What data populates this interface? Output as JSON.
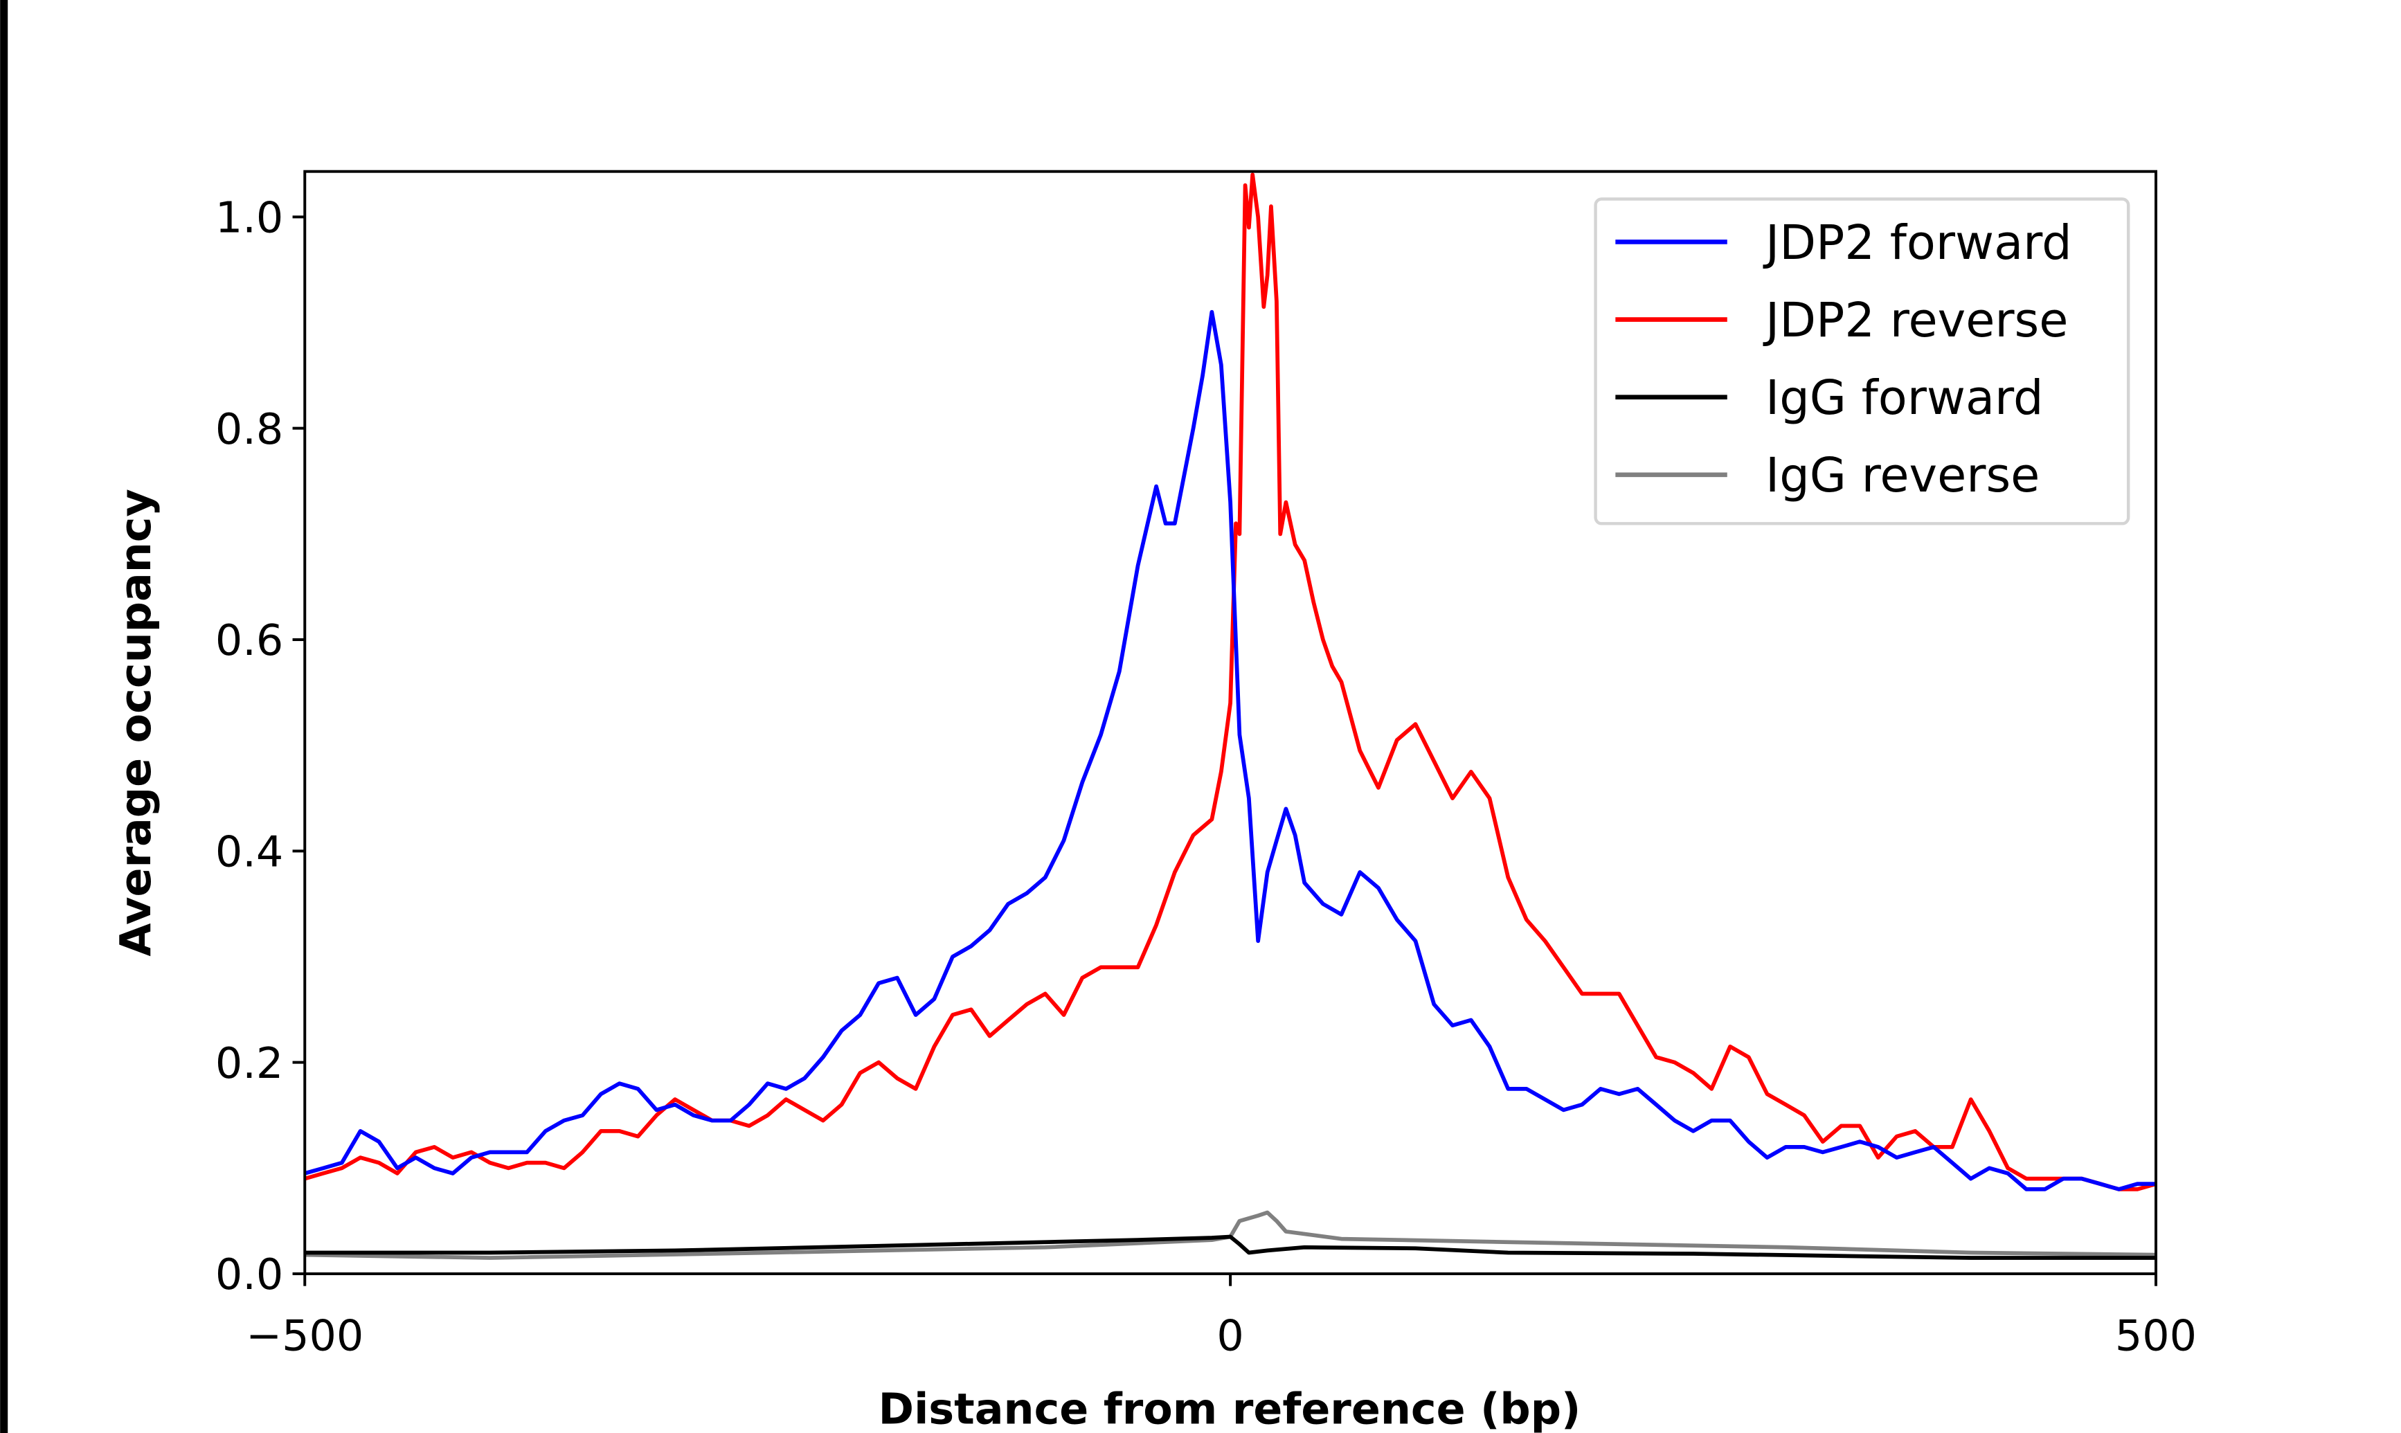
{
  "chart_data": {
    "type": "line",
    "title": "",
    "xlabel": "Distance from reference (bp)",
    "ylabel": "Average occupancy",
    "xlim": [
      -500,
      500
    ],
    "ylim": [
      0,
      1.043
    ],
    "xticks": [
      -500,
      0,
      500
    ],
    "xtick_labels": [
      "−500",
      "0",
      "500"
    ],
    "yticks": [
      0,
      0.2,
      0.4,
      0.6,
      0.8,
      1.0
    ],
    "ytick_labels": [
      "0.0",
      "0.2",
      "0.4",
      "0.6",
      "0.8",
      "1.0"
    ],
    "grid": false,
    "legend_position": "top-right",
    "series": [
      {
        "name": "JDP2 forward",
        "color": "#0000ff",
        "x": [
          -500,
          -490,
          -480,
          -470,
          -460,
          -450,
          -440,
          -430,
          -420,
          -410,
          -400,
          -390,
          -380,
          -370,
          -360,
          -350,
          -340,
          -330,
          -320,
          -310,
          -300,
          -290,
          -280,
          -270,
          -260,
          -250,
          -240,
          -230,
          -220,
          -210,
          -200,
          -190,
          -180,
          -170,
          -160,
          -150,
          -140,
          -130,
          -120,
          -110,
          -100,
          -90,
          -80,
          -70,
          -60,
          -50,
          -40,
          -35,
          -30,
          -20,
          -15,
          -10,
          -5,
          0,
          5,
          10,
          15,
          20,
          25,
          30,
          35,
          40,
          50,
          60,
          70,
          80,
          90,
          100,
          110,
          120,
          130,
          140,
          150,
          160,
          170,
          180,
          190,
          200,
          210,
          220,
          230,
          240,
          250,
          260,
          270,
          280,
          290,
          300,
          310,
          320,
          330,
          340,
          350,
          360,
          370,
          380,
          390,
          400,
          410,
          420,
          430,
          440,
          450,
          460,
          470,
          480,
          490,
          500
        ],
        "y": [
          0.095,
          0.1,
          0.105,
          0.135,
          0.125,
          0.1,
          0.11,
          0.1,
          0.095,
          0.11,
          0.115,
          0.115,
          0.115,
          0.135,
          0.145,
          0.15,
          0.17,
          0.18,
          0.175,
          0.155,
          0.16,
          0.15,
          0.145,
          0.145,
          0.16,
          0.18,
          0.175,
          0.185,
          0.205,
          0.23,
          0.245,
          0.275,
          0.28,
          0.245,
          0.26,
          0.3,
          0.31,
          0.325,
          0.35,
          0.36,
          0.375,
          0.41,
          0.465,
          0.51,
          0.57,
          0.67,
          0.745,
          0.71,
          0.71,
          0.8,
          0.85,
          0.91,
          0.86,
          0.73,
          0.51,
          0.45,
          0.315,
          0.38,
          0.41,
          0.44,
          0.415,
          0.37,
          0.35,
          0.34,
          0.38,
          0.365,
          0.335,
          0.315,
          0.255,
          0.235,
          0.24,
          0.215,
          0.175,
          0.175,
          0.165,
          0.155,
          0.16,
          0.175,
          0.17,
          0.175,
          0.16,
          0.145,
          0.135,
          0.145,
          0.145,
          0.125,
          0.11,
          0.12,
          0.12,
          0.115,
          0.12,
          0.125,
          0.12,
          0.11,
          0.115,
          0.12,
          0.105,
          0.09,
          0.1,
          0.095,
          0.08,
          0.08,
          0.09,
          0.09,
          0.085,
          0.08,
          0.085,
          0.085
        ]
      },
      {
        "name": "JDP2 reverse",
        "color": "#ff0000",
        "x": [
          -500,
          -490,
          -480,
          -470,
          -460,
          -450,
          -440,
          -430,
          -420,
          -410,
          -400,
          -390,
          -380,
          -370,
          -360,
          -350,
          -340,
          -330,
          -320,
          -310,
          -300,
          -290,
          -280,
          -270,
          -260,
          -250,
          -240,
          -230,
          -220,
          -210,
          -200,
          -190,
          -180,
          -170,
          -160,
          -150,
          -140,
          -130,
          -120,
          -110,
          -100,
          -90,
          -80,
          -70,
          -60,
          -50,
          -40,
          -30,
          -20,
          -10,
          -5,
          0,
          3,
          5,
          8,
          10,
          12,
          15,
          18,
          20,
          22,
          25,
          27,
          30,
          35,
          40,
          45,
          50,
          55,
          60,
          70,
          80,
          90,
          100,
          110,
          120,
          130,
          140,
          150,
          160,
          170,
          180,
          190,
          200,
          210,
          220,
          230,
          240,
          250,
          260,
          270,
          280,
          290,
          300,
          310,
          320,
          330,
          340,
          350,
          360,
          370,
          380,
          390,
          400,
          410,
          420,
          430,
          440,
          450,
          460,
          470,
          480,
          490,
          500
        ],
        "y": [
          0.09,
          0.095,
          0.1,
          0.11,
          0.105,
          0.095,
          0.115,
          0.12,
          0.11,
          0.115,
          0.105,
          0.1,
          0.105,
          0.105,
          0.1,
          0.115,
          0.135,
          0.135,
          0.13,
          0.15,
          0.165,
          0.155,
          0.145,
          0.145,
          0.14,
          0.15,
          0.165,
          0.155,
          0.145,
          0.16,
          0.19,
          0.2,
          0.185,
          0.175,
          0.215,
          0.245,
          0.25,
          0.225,
          0.24,
          0.255,
          0.265,
          0.245,
          0.28,
          0.29,
          0.29,
          0.29,
          0.33,
          0.38,
          0.415,
          0.43,
          0.475,
          0.54,
          0.71,
          0.7,
          1.03,
          0.99,
          1.04,
          1.0,
          0.915,
          0.945,
          1.01,
          0.92,
          0.7,
          0.73,
          0.69,
          0.675,
          0.635,
          0.6,
          0.575,
          0.56,
          0.495,
          0.46,
          0.505,
          0.52,
          0.485,
          0.45,
          0.475,
          0.45,
          0.375,
          0.335,
          0.315,
          0.29,
          0.265,
          0.265,
          0.265,
          0.235,
          0.205,
          0.2,
          0.19,
          0.175,
          0.215,
          0.205,
          0.17,
          0.16,
          0.15,
          0.125,
          0.14,
          0.14,
          0.11,
          0.13,
          0.135,
          0.12,
          0.12,
          0.165,
          0.135,
          0.1,
          0.09,
          0.09,
          0.09,
          0.09,
          0.085,
          0.08,
          0.08,
          0.085
        ]
      },
      {
        "name": "IgG forward",
        "color": "#000000",
        "x": [
          -500,
          -400,
          -300,
          -200,
          -100,
          -50,
          -10,
          0,
          5,
          10,
          20,
          40,
          100,
          150,
          250,
          400,
          500
        ],
        "y": [
          0.02,
          0.02,
          0.022,
          0.026,
          0.03,
          0.032,
          0.034,
          0.035,
          0.028,
          0.02,
          0.022,
          0.025,
          0.024,
          0.02,
          0.019,
          0.015,
          0.015
        ]
      },
      {
        "name": "IgG reverse",
        "color": "#808080",
        "x": [
          -500,
          -400,
          -250,
          -100,
          -10,
          0,
          5,
          15,
          20,
          25,
          30,
          60,
          150,
          300,
          400,
          500
        ],
        "y": [
          0.018,
          0.015,
          0.02,
          0.025,
          0.032,
          0.035,
          0.05,
          0.055,
          0.058,
          0.05,
          0.04,
          0.033,
          0.03,
          0.025,
          0.02,
          0.018
        ]
      }
    ]
  }
}
